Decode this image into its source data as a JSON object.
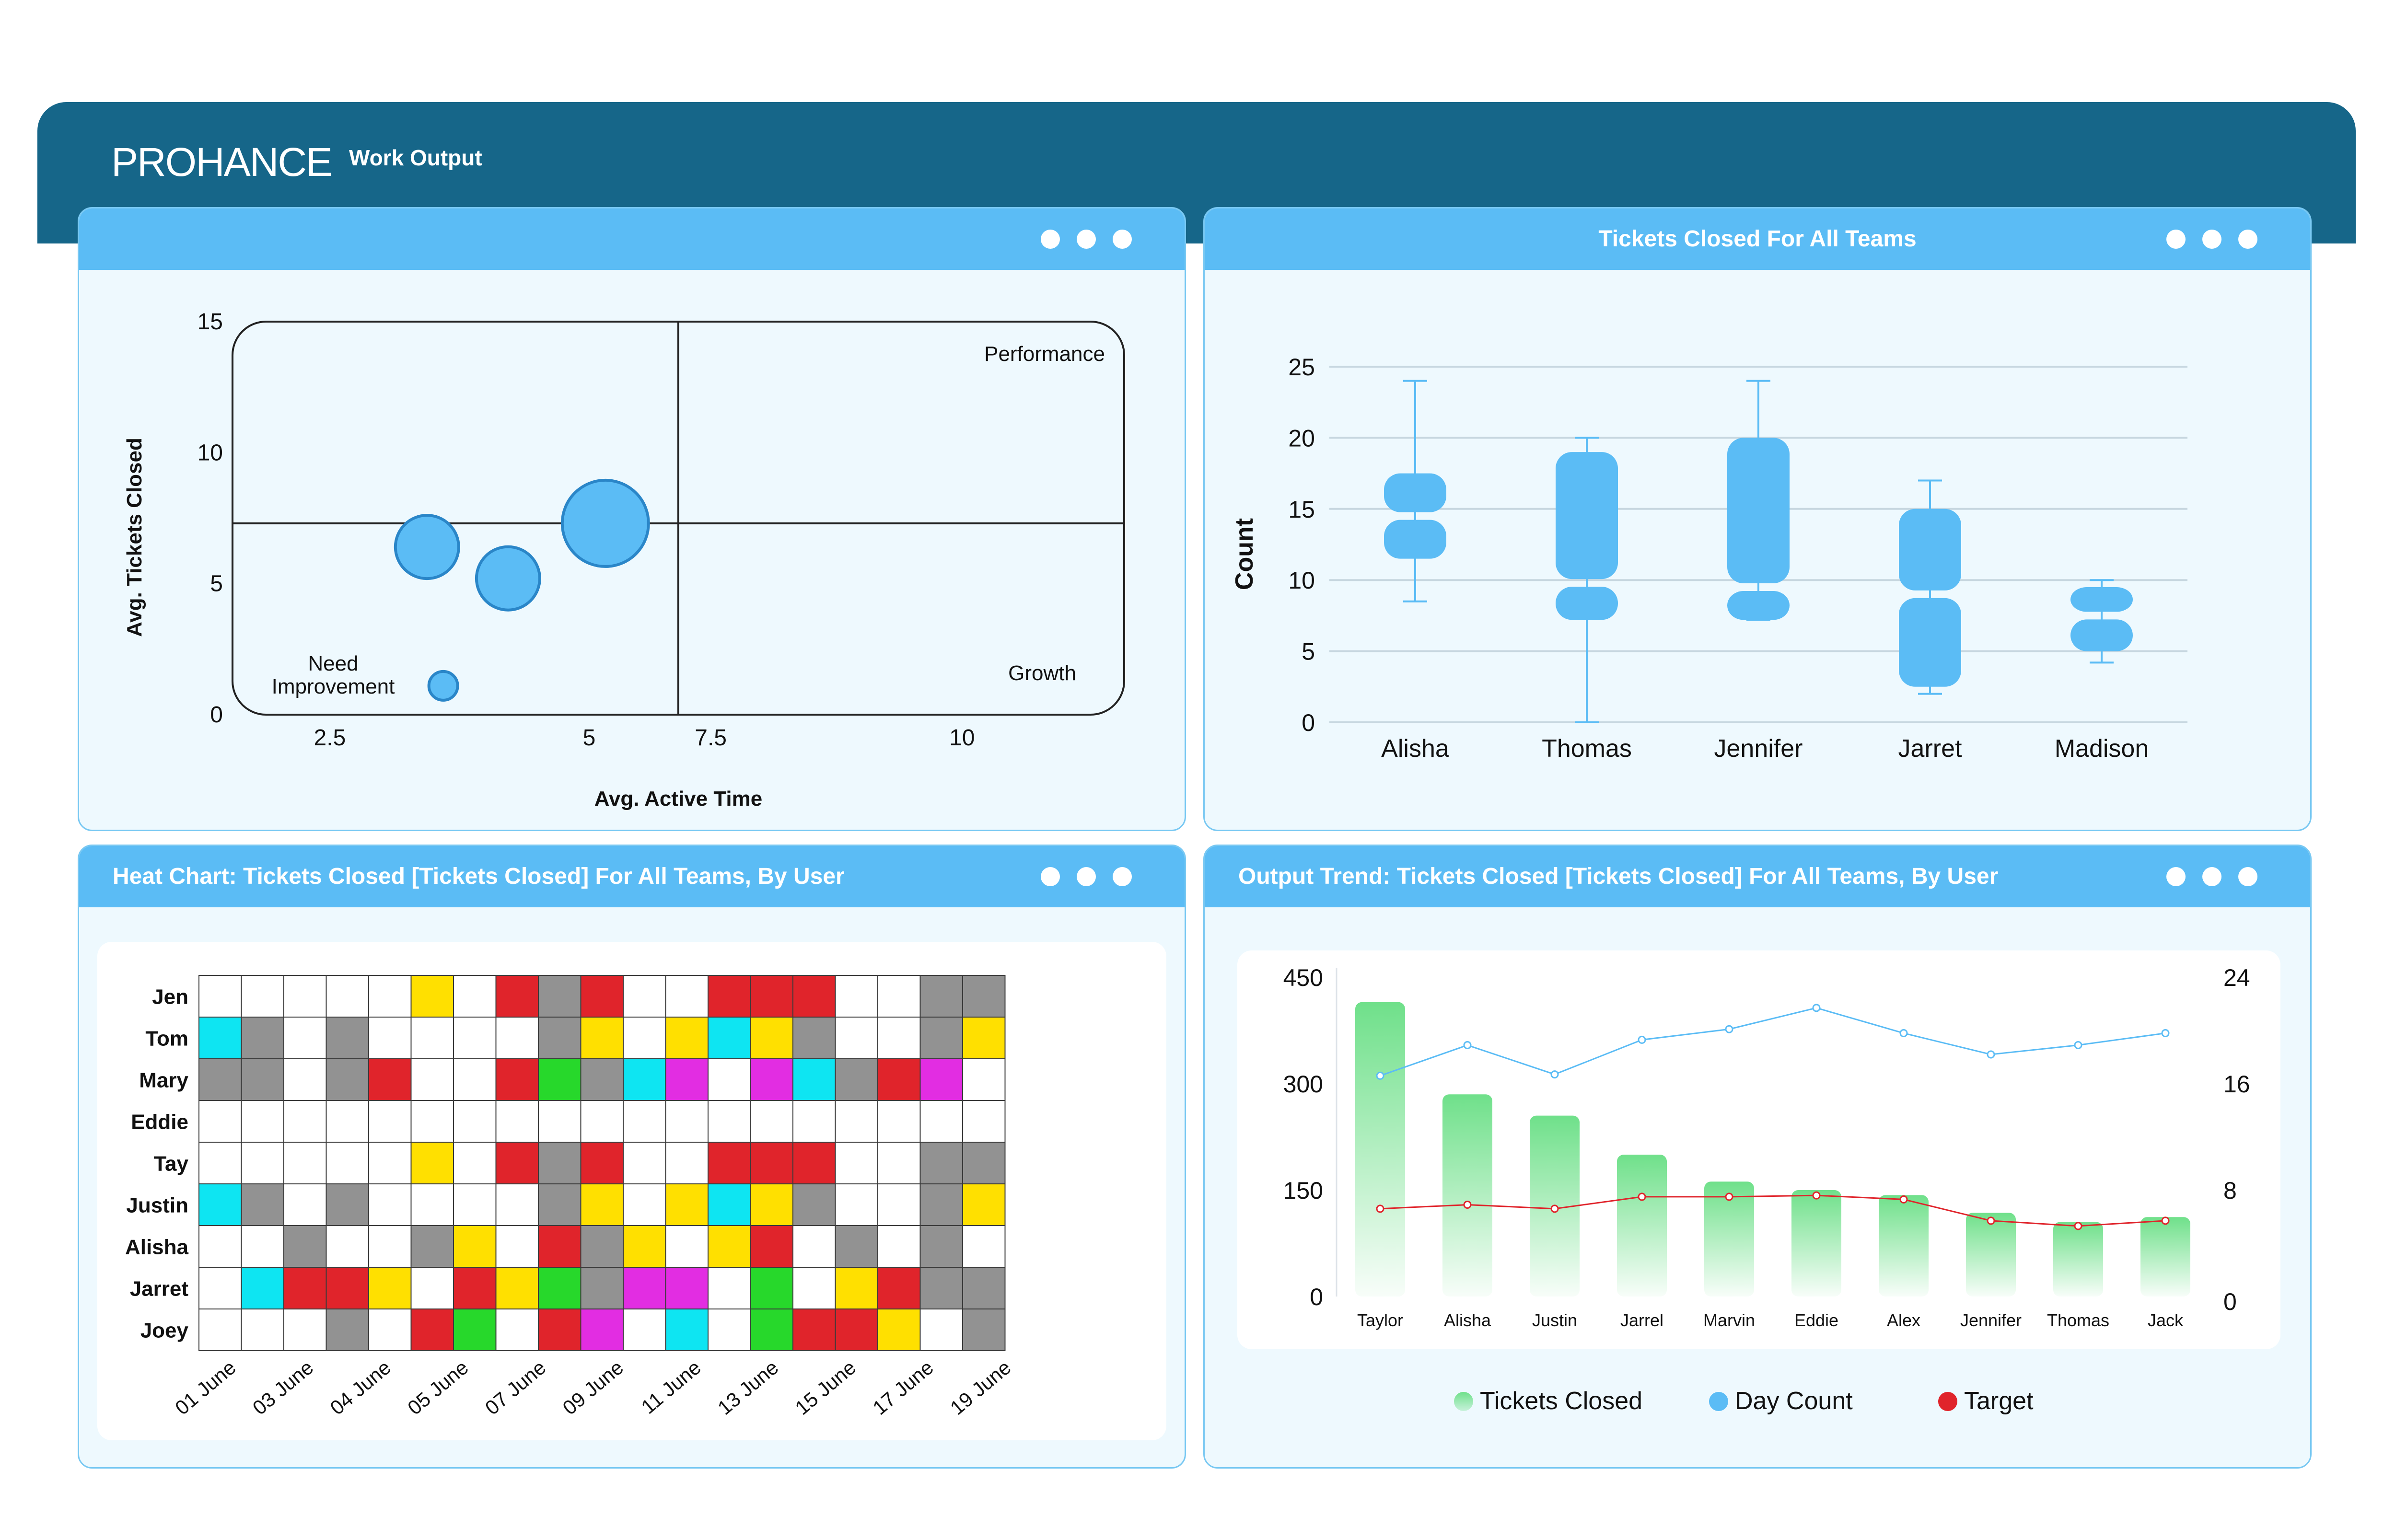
{
  "app": {
    "brand": "PROHANCE",
    "title": "Work Output"
  },
  "colors": {
    "header": "#166689",
    "panel_head": "#5bbcf5",
    "panel_bg": "#eef9fe",
    "bubble": "#5bbcf5",
    "box": "#5bbcf5",
    "bar": "#6fe08a",
    "day_line": "#5bbcf5",
    "target_line": "#e0242b"
  },
  "panels": {
    "quadrant": {
      "title": "",
      "window_controls": [
        "dot",
        "dot",
        "dot"
      ]
    },
    "box": {
      "title": "Tickets Closed For All Teams"
    },
    "heat": {
      "title": "Heat Chart: Tickets Closed [Tickets Closed] For All Teams, By User"
    },
    "trend": {
      "title": "Output Trend: Tickets Closed [Tickets Closed] For All Teams, By User"
    }
  },
  "chart_data": [
    {
      "type": "scatter",
      "xlabel": "Avg. Active Time",
      "ylabel": "Avg. Tickets Closed",
      "x_ticks": [
        "2.5",
        "5",
        "7.5",
        "10"
      ],
      "y_ticks": [
        "0",
        "5",
        "10",
        "15"
      ],
      "quadrant_labels": {
        "top_right": "Performance",
        "bottom_left": [
          "Need",
          "Improvement"
        ],
        "bottom_right": "Growth"
      },
      "points": [
        {
          "x": 3.4,
          "y": 6.4,
          "size": 2.2
        },
        {
          "x": 4.4,
          "y": 5.2,
          "size": 2.2
        },
        {
          "x": 5.6,
          "y": 7.3,
          "size": 3.0
        },
        {
          "x": 3.6,
          "y": 1.1,
          "size": 1.0
        }
      ]
    },
    {
      "type": "box",
      "ylabel": "Count",
      "y_ticks": [
        "0",
        "5",
        "10",
        "15",
        "20",
        "25"
      ],
      "ylim": [
        0,
        25
      ],
      "categories": [
        "Alisha",
        "Thomas",
        "Jennifer",
        "Jarret",
        "Madison"
      ],
      "boxes": [
        {
          "min": 8.5,
          "q1": 11.5,
          "median": 14.5,
          "q3": 17.5,
          "max": 24
        },
        {
          "min": 0,
          "q1": 7.2,
          "median": 9.8,
          "q3": 19,
          "max": 20
        },
        {
          "min": 7.2,
          "q1": 7.2,
          "median": 9.5,
          "q3": 20,
          "max": 24
        },
        {
          "min": 2,
          "q1": 2.5,
          "median": 9,
          "q3": 15,
          "max": 17
        },
        {
          "min": 4.2,
          "q1": 5,
          "median": 7.5,
          "q3": 9.5,
          "max": 10
        }
      ]
    },
    {
      "type": "heatmap",
      "rows": [
        "Jen",
        "Tom",
        "Mary",
        "Eddie",
        "Tay",
        "Justin",
        "Alisha",
        "Jarret",
        "Joey"
      ],
      "x_labels": [
        "01 June",
        "03 June",
        "04 June",
        "05 June",
        "07 June",
        "09 June",
        "11 June",
        "13 June",
        "15 June",
        "17 June",
        "19 June"
      ],
      "palette": {
        "w": "#ffffff",
        "g": "#929292",
        "y": "#ffe000",
        "r": "#e0242b",
        "c": "#0ee5f2",
        "m": "#e22de2",
        "n": "#27d82b"
      },
      "grid": [
        "wwwwwywrgrwwrrrwwgg",
        "cgwgwwwwgywycygwwgy",
        "ggwgrwwrngcmwmcgrmw",
        "wwwwwwwwwwwwwwwwwww",
        "wwwwwywrgrwwrrrwwgg",
        "cgwgwwwwgywycygwwgy",
        "wwgwwgywrgywyrwgwgw",
        "wcrrywryngmmwnwyrgg",
        "wwwgwrnwrmwcwnrrywg"
      ]
    },
    {
      "type": "bar_line",
      "categories": [
        "Taylor",
        "Alisha",
        "Justin",
        "Jarrel",
        "Marvin",
        "Eddie",
        "Alex",
        "Jennifer",
        "Thomas",
        "Jack"
      ],
      "y_left_ticks": [
        "0",
        "150",
        "300",
        "450"
      ],
      "y_left_lim": [
        0,
        450
      ],
      "y_right_ticks": [
        "0",
        "8",
        "16",
        "24"
      ],
      "y_right_lim": [
        0,
        24
      ],
      "series": [
        {
          "name": "Tickets Closed",
          "axis": "left",
          "type": "bar",
          "values": [
            415,
            285,
            255,
            200,
            162,
            150,
            143,
            118,
            105,
            112
          ]
        },
        {
          "name": "Day Count",
          "axis": "right",
          "type": "line",
          "values": [
            16.6,
            18.9,
            16.7,
            19.3,
            20.1,
            21.7,
            19.8,
            18.2,
            18.9,
            19.8
          ]
        },
        {
          "name": "Target",
          "axis": "right",
          "type": "line",
          "values": [
            6.6,
            6.9,
            6.6,
            7.5,
            7.5,
            7.6,
            7.3,
            5.7,
            5.3,
            5.7
          ]
        }
      ]
    }
  ]
}
